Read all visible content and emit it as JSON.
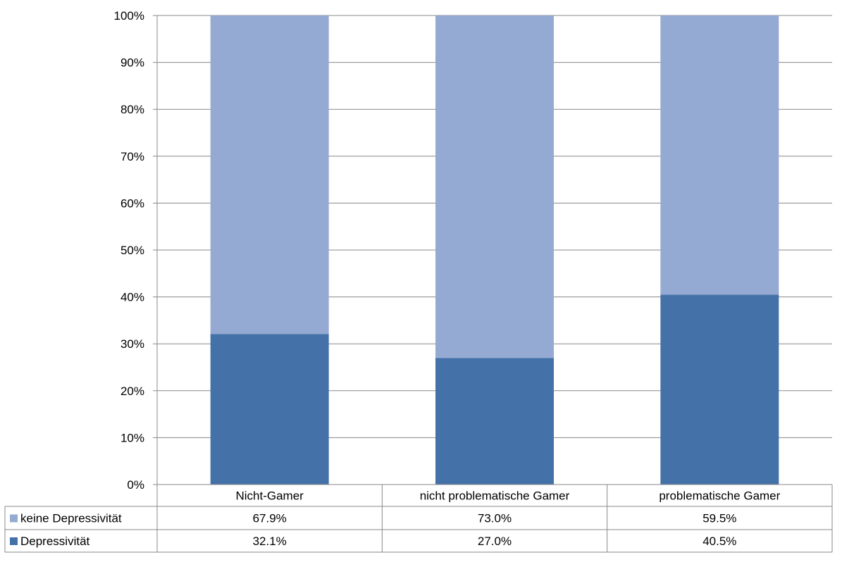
{
  "chart_data": {
    "type": "bar",
    "stacked": true,
    "categories": [
      "Nicht-Gamer",
      "nicht problematische Gamer",
      "problematische Gamer"
    ],
    "series": [
      {
        "name": "Depressivität",
        "values": [
          32.1,
          27.0,
          40.5
        ],
        "labels": [
          "32.1%",
          "27.0%",
          "40.5%"
        ],
        "color": "#4472a8"
      },
      {
        "name": "keine Depressivität",
        "values": [
          67.9,
          73.0,
          59.5
        ],
        "labels": [
          "67.9%",
          "73.0%",
          "59.5%"
        ],
        "color": "#95aad2"
      }
    ],
    "table_row_order": [
      "keine Depressivität",
      "Depressivität"
    ],
    "ylim": [
      0,
      100
    ],
    "yticks": [
      "0%",
      "10%",
      "20%",
      "30%",
      "40%",
      "50%",
      "60%",
      "70%",
      "80%",
      "90%",
      "100%"
    ],
    "grid": true,
    "legend": "data table below chart",
    "title": "",
    "xlabel": "",
    "ylabel": "",
    "gridline_color": "#888888"
  }
}
